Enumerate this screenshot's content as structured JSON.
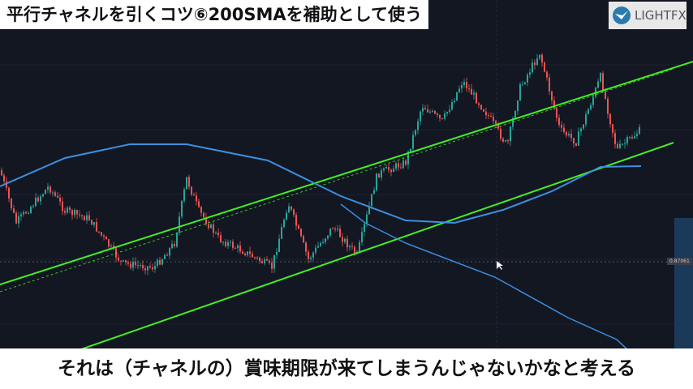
{
  "title": "平行チャネルを引くコツ⑥200SMAを補助として使う",
  "logo_text": "LIGHTFX",
  "caption": "それは（チャネルの）賞味期限が来てしまうんじゃないかなと考える",
  "colors": {
    "background": "#131722",
    "up": "#26a69a",
    "down": "#ef5350",
    "channel": "#44ee22",
    "sma": "#3d8fe0"
  },
  "chart_data": {
    "type": "candlestick",
    "current_price_label": "0.87061",
    "price_path": [
      0.87626,
      0.87301,
      0.87526,
      0.87376,
      0.87326,
      0.87051,
      0.87026,
      0.87176,
      0.87576,
      0.87376,
      0.87201,
      0.87126,
      0.87026,
      0.87426,
      0.87076,
      0.87276,
      0.87101,
      0.87601,
      0.87676,
      0.88026,
      0.87926,
      0.88176,
      0.87976,
      0.87776,
      0.88126,
      0.88351,
      0.87876,
      0.87801,
      0.88201,
      0.87751,
      0.87876
    ],
    "channel": {
      "upper": [
        0.86921,
        0.88296
      ],
      "middle": [
        0.86876,
        0.88251
      ],
      "lower": [
        0.86521,
        0.87796
      ],
      "color": "#44ee22"
    },
    "sma_fast": [
      0.87526,
      0.87701,
      0.87786,
      0.87786,
      0.87686,
      0.87466,
      0.87316,
      0.87301,
      0.87381,
      0.87496,
      0.87646,
      0.87651
    ],
    "sma_slow": [
      0.87416,
      0.87301,
      0.87176,
      0.86966,
      0.86716,
      0.86581,
      0.86441
    ]
  }
}
